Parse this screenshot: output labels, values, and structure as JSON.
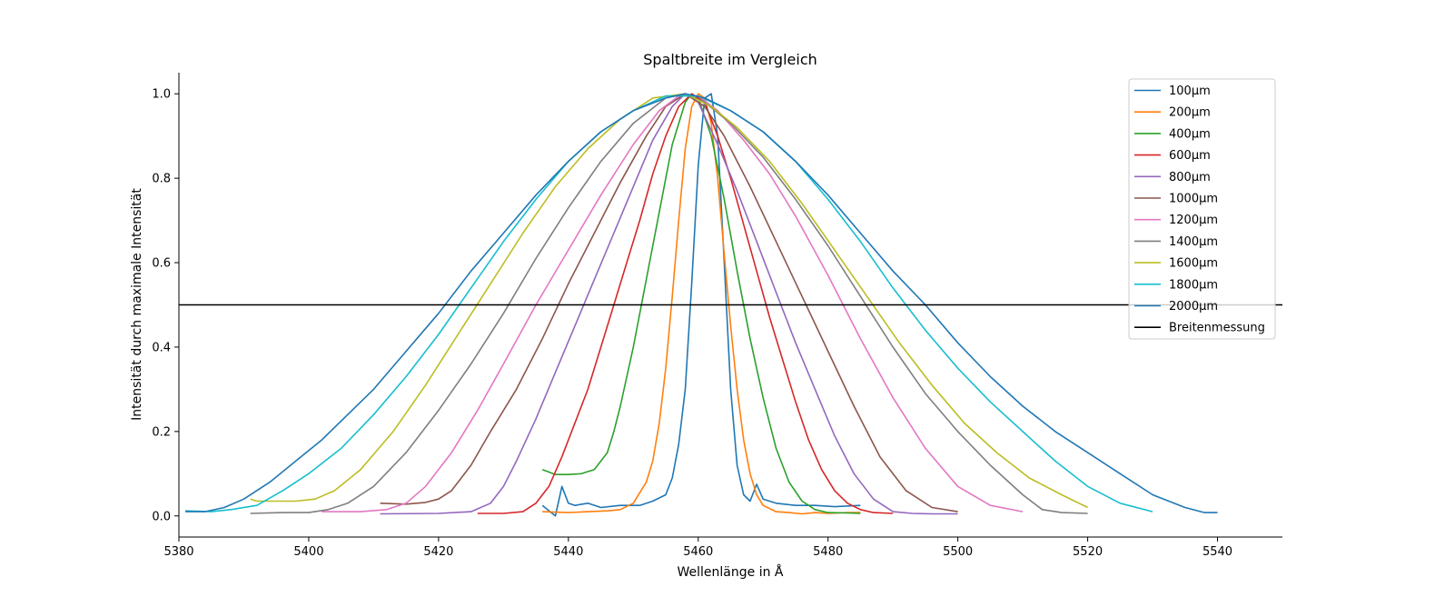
{
  "chart_data": {
    "type": "line",
    "title": "Spaltbreite im Vergleich",
    "xlabel": "Wellenlänge in Å",
    "ylabel": "Intensität durch maximale Intensität",
    "xlim": [
      5380,
      5550
    ],
    "ylim": [
      -0.05,
      1.05
    ],
    "x_ticks": [
      5380,
      5400,
      5420,
      5440,
      5460,
      5480,
      5500,
      5520,
      5540
    ],
    "y_ticks": [
      "0.0",
      "0.2",
      "0.4",
      "0.6",
      "0.8",
      "1.0"
    ],
    "grid": false,
    "legend_position": "top-right",
    "hline": {
      "name": "Breitenmessung",
      "y": 0.5,
      "color": "#000000"
    },
    "series": [
      {
        "name": "100μm",
        "color": "#1f77b4",
        "x": [
          5436,
          5438,
          5439,
          5440,
          5441,
          5443,
          5445,
          5448,
          5451,
          5453,
          5455,
          5456,
          5457,
          5458,
          5459,
          5460,
          5461,
          5462,
          5463,
          5464,
          5465,
          5466,
          5467,
          5468,
          5469,
          5470,
          5472,
          5475,
          5478,
          5481,
          5485
        ],
        "y": [
          0.025,
          0.0,
          0.07,
          0.03,
          0.025,
          0.03,
          0.02,
          0.025,
          0.025,
          0.035,
          0.05,
          0.09,
          0.17,
          0.3,
          0.55,
          0.83,
          0.99,
          1.0,
          0.9,
          0.6,
          0.3,
          0.12,
          0.05,
          0.035,
          0.075,
          0.04,
          0.03,
          0.025,
          0.025,
          0.022,
          0.025
        ]
      },
      {
        "name": "200μm",
        "color": "#ff7f0e",
        "x": [
          5436,
          5440,
          5443,
          5446,
          5448,
          5450,
          5452,
          5453,
          5454,
          5455,
          5456,
          5457,
          5458,
          5459,
          5460,
          5461,
          5462,
          5463,
          5464,
          5465,
          5466,
          5467,
          5468,
          5469,
          5470,
          5472,
          5474,
          5476,
          5478,
          5480,
          5483,
          5485
        ],
        "y": [
          0.01,
          0.008,
          0.01,
          0.012,
          0.015,
          0.03,
          0.08,
          0.13,
          0.22,
          0.35,
          0.52,
          0.7,
          0.87,
          0.97,
          1.0,
          0.99,
          0.93,
          0.8,
          0.62,
          0.45,
          0.3,
          0.18,
          0.1,
          0.05,
          0.025,
          0.01,
          0.008,
          0.005,
          0.008,
          0.006,
          0.008,
          0.008
        ]
      },
      {
        "name": "400μm",
        "color": "#2ca02c",
        "x": [
          5436,
          5438,
          5440,
          5442,
          5444,
          5446,
          5447,
          5448,
          5450,
          5452,
          5454,
          5456,
          5458,
          5459,
          5460,
          5462,
          5464,
          5466,
          5468,
          5470,
          5472,
          5474,
          5476,
          5478,
          5480,
          5483,
          5485
        ],
        "y": [
          0.11,
          0.098,
          0.098,
          0.1,
          0.11,
          0.15,
          0.2,
          0.26,
          0.4,
          0.56,
          0.72,
          0.88,
          0.98,
          1.0,
          0.99,
          0.9,
          0.75,
          0.58,
          0.42,
          0.28,
          0.16,
          0.08,
          0.035,
          0.015,
          0.008,
          0.007,
          0.006
        ]
      },
      {
        "name": "600μm",
        "color": "#d62728",
        "x": [
          5426,
          5430,
          5433,
          5435,
          5437,
          5439,
          5441,
          5443,
          5445,
          5447,
          5449,
          5451,
          5453,
          5455,
          5457,
          5459,
          5461,
          5463,
          5465,
          5467,
          5469,
          5471,
          5473,
          5475,
          5477,
          5479,
          5481,
          5483,
          5485,
          5487,
          5490
        ],
        "y": [
          0.006,
          0.006,
          0.01,
          0.03,
          0.07,
          0.14,
          0.22,
          0.3,
          0.4,
          0.5,
          0.6,
          0.7,
          0.81,
          0.9,
          0.97,
          1.0,
          0.98,
          0.9,
          0.8,
          0.69,
          0.58,
          0.47,
          0.37,
          0.27,
          0.18,
          0.11,
          0.06,
          0.03,
          0.015,
          0.008,
          0.006
        ]
      },
      {
        "name": "800μm",
        "color": "#9467bd",
        "x": [
          5411,
          5420,
          5425,
          5428,
          5430,
          5432,
          5435,
          5438,
          5441,
          5444,
          5447,
          5450,
          5453,
          5456,
          5458,
          5460,
          5463,
          5466,
          5469,
          5472,
          5475,
          5478,
          5481,
          5484,
          5487,
          5490,
          5493,
          5496,
          5500
        ],
        "y": [
          0.005,
          0.006,
          0.01,
          0.03,
          0.07,
          0.13,
          0.23,
          0.34,
          0.45,
          0.56,
          0.67,
          0.78,
          0.89,
          0.97,
          1.0,
          0.98,
          0.88,
          0.77,
          0.65,
          0.53,
          0.41,
          0.3,
          0.19,
          0.1,
          0.04,
          0.01,
          0.006,
          0.005,
          0.005
        ]
      },
      {
        "name": "1000μm",
        "color": "#8c564b",
        "x": [
          5411,
          5415,
          5418,
          5420,
          5422,
          5425,
          5428,
          5432,
          5436,
          5440,
          5444,
          5448,
          5452,
          5455,
          5458,
          5461,
          5464,
          5468,
          5472,
          5476,
          5480,
          5484,
          5488,
          5492,
          5496,
          5500
        ],
        "y": [
          0.03,
          0.028,
          0.032,
          0.04,
          0.06,
          0.12,
          0.2,
          0.3,
          0.42,
          0.55,
          0.67,
          0.79,
          0.9,
          0.97,
          1.0,
          0.97,
          0.9,
          0.78,
          0.65,
          0.52,
          0.39,
          0.26,
          0.14,
          0.06,
          0.02,
          0.01
        ]
      },
      {
        "name": "1200μm",
        "color": "#e377c2",
        "x": [
          5402,
          5408,
          5412,
          5415,
          5418,
          5422,
          5426,
          5430,
          5435,
          5440,
          5445,
          5450,
          5454,
          5457,
          5460,
          5463,
          5467,
          5471,
          5475,
          5480,
          5485,
          5490,
          5495,
          5500,
          5505,
          5510
        ],
        "y": [
          0.01,
          0.01,
          0.015,
          0.03,
          0.07,
          0.15,
          0.25,
          0.36,
          0.5,
          0.63,
          0.76,
          0.88,
          0.96,
          0.995,
          0.995,
          0.96,
          0.89,
          0.81,
          0.71,
          0.57,
          0.42,
          0.28,
          0.16,
          0.07,
          0.025,
          0.01
        ]
      },
      {
        "name": "1400μm",
        "color": "#7f7f7f",
        "x": [
          5391,
          5396,
          5400,
          5403,
          5406,
          5410,
          5415,
          5420,
          5425,
          5430,
          5435,
          5440,
          5445,
          5450,
          5455,
          5458,
          5461,
          5465,
          5470,
          5475,
          5480,
          5485,
          5490,
          5495,
          5500,
          5505,
          5510,
          5513,
          5516,
          5520
        ],
        "y": [
          0.006,
          0.008,
          0.008,
          0.015,
          0.03,
          0.07,
          0.15,
          0.25,
          0.36,
          0.48,
          0.61,
          0.73,
          0.84,
          0.93,
          0.99,
          1.0,
          0.98,
          0.93,
          0.85,
          0.75,
          0.64,
          0.52,
          0.4,
          0.29,
          0.2,
          0.12,
          0.05,
          0.015,
          0.008,
          0.006
        ]
      },
      {
        "name": "1600μm",
        "color": "#bcbd22",
        "x": [
          5391,
          5392,
          5395,
          5398,
          5401,
          5404,
          5408,
          5413,
          5418,
          5423,
          5428,
          5433,
          5438,
          5443,
          5448,
          5453,
          5458,
          5462,
          5466,
          5471,
          5476,
          5481,
          5486,
          5491,
          5496,
          5501,
          5506,
          5511,
          5516,
          5520
        ],
        "y": [
          0.04,
          0.035,
          0.035,
          0.035,
          0.04,
          0.06,
          0.11,
          0.2,
          0.31,
          0.43,
          0.55,
          0.67,
          0.78,
          0.87,
          0.94,
          0.99,
          1.0,
          0.97,
          0.92,
          0.84,
          0.74,
          0.63,
          0.52,
          0.41,
          0.31,
          0.22,
          0.15,
          0.09,
          0.05,
          0.02
        ]
      },
      {
        "name": "1800μm",
        "color": "#17becf",
        "x": [
          5381,
          5385,
          5388,
          5392,
          5396,
          5400,
          5405,
          5410,
          5415,
          5420,
          5425,
          5430,
          5435,
          5440,
          5445,
          5450,
          5455,
          5460,
          5465,
          5470,
          5475,
          5480,
          5485,
          5490,
          5495,
          5500,
          5505,
          5510,
          5515,
          5520,
          5525,
          5530
        ],
        "y": [
          0.012,
          0.01,
          0.015,
          0.025,
          0.06,
          0.1,
          0.16,
          0.24,
          0.33,
          0.43,
          0.54,
          0.65,
          0.75,
          0.84,
          0.91,
          0.96,
          0.995,
          0.995,
          0.96,
          0.91,
          0.84,
          0.75,
          0.65,
          0.54,
          0.44,
          0.35,
          0.27,
          0.2,
          0.13,
          0.07,
          0.03,
          0.01
        ]
      },
      {
        "name": "2000μm",
        "color": "#1f77b4",
        "x": [
          5381,
          5384,
          5387,
          5390,
          5394,
          5398,
          5402,
          5406,
          5410,
          5415,
          5420,
          5425,
          5430,
          5435,
          5440,
          5445,
          5450,
          5455,
          5458,
          5461,
          5465,
          5470,
          5475,
          5480,
          5485,
          5490,
          5495,
          5500,
          5505,
          5510,
          5515,
          5520,
          5525,
          5530,
          5535,
          5538,
          5540
        ],
        "y": [
          0.01,
          0.01,
          0.02,
          0.04,
          0.08,
          0.13,
          0.18,
          0.24,
          0.3,
          0.39,
          0.48,
          0.58,
          0.67,
          0.76,
          0.84,
          0.91,
          0.96,
          0.99,
          1.0,
          0.99,
          0.96,
          0.91,
          0.84,
          0.76,
          0.67,
          0.58,
          0.5,
          0.41,
          0.33,
          0.26,
          0.2,
          0.15,
          0.1,
          0.05,
          0.02,
          0.008,
          0.008
        ]
      }
    ]
  }
}
